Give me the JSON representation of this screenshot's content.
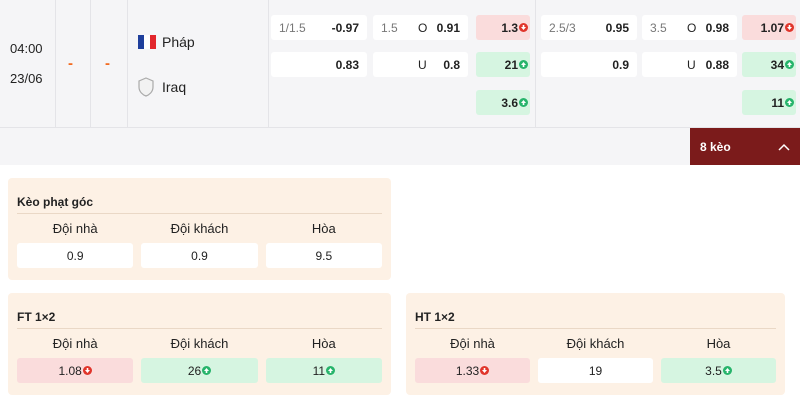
{
  "match": {
    "time": "04:00",
    "date": "23/06",
    "score_home": "-",
    "score_away": "-",
    "home": "Pháp",
    "away": "Iraq"
  },
  "odds": {
    "ft_handicap": {
      "line": "1/1.5",
      "home": "-0.97",
      "away": "0.83"
    },
    "ft_over_under": {
      "line": "1.5",
      "over_label": "O",
      "over": "0.91",
      "under_label": "U",
      "under": "0.8"
    },
    "ft_1x2": [
      {
        "value": "1.3",
        "trend": "down"
      },
      {
        "value": "21",
        "trend": "up"
      },
      {
        "value": "3.6",
        "trend": "up"
      }
    ],
    "ht_handicap": {
      "line": "2.5/3",
      "home": "0.95",
      "away": "0.9"
    },
    "ht_over_under": {
      "line": "3.5",
      "over_label": "O",
      "over": "0.98",
      "under_label": "U",
      "under": "0.88"
    },
    "ht_1x2": [
      {
        "value": "1.07",
        "trend": "down"
      },
      {
        "value": "34",
        "trend": "up"
      },
      {
        "value": "11",
        "trend": "up"
      }
    ]
  },
  "more_button": "8 kèo",
  "panels": [
    {
      "title": "Kèo phạt góc",
      "headers": [
        "Đội nhà",
        "Đội khách",
        "Hòa"
      ],
      "cells": [
        {
          "value": "0.9",
          "trend": "none"
        },
        {
          "value": "0.9",
          "trend": "none"
        },
        {
          "value": "9.5",
          "trend": "none"
        }
      ]
    },
    {
      "title": "FT 1×2",
      "headers": [
        "Đội nhà",
        "Đội khách",
        "Hòa"
      ],
      "cells": [
        {
          "value": "1.08",
          "trend": "down"
        },
        {
          "value": "26",
          "trend": "up"
        },
        {
          "value": "11",
          "trend": "up"
        }
      ]
    },
    {
      "title": "HT 1×2",
      "headers": [
        "Đội nhà",
        "Đội khách",
        "Hòa"
      ],
      "cells": [
        {
          "value": "1.33",
          "trend": "down"
        },
        {
          "value": "19",
          "trend": "none"
        },
        {
          "value": "3.5",
          "trend": "up"
        }
      ]
    }
  ]
}
